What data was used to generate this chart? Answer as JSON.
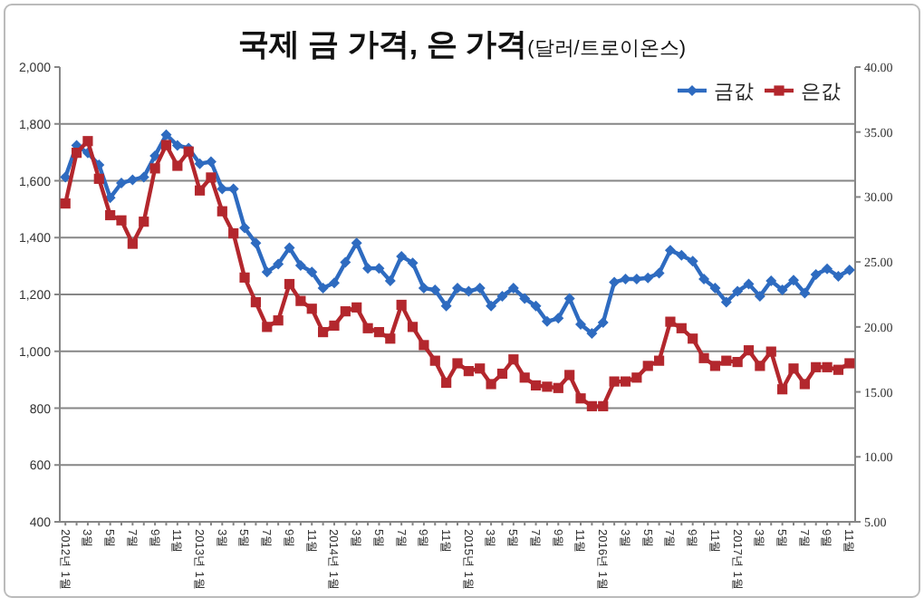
{
  "chart_data": {
    "type": "line",
    "title": "국제 금 가격, 은 가격",
    "subtitle": "(달러/트로이온스)",
    "categories": [
      "2012년 1월",
      null,
      "3월",
      null,
      "5월",
      null,
      "7월",
      null,
      "9월",
      null,
      "11월",
      null,
      "2013년 1월",
      null,
      "3월",
      null,
      "5월",
      null,
      "7월",
      null,
      "9월",
      null,
      "11월",
      null,
      "2014년 1월",
      null,
      "3월",
      null,
      "5월",
      null,
      "7월",
      null,
      "9월",
      null,
      "11월",
      null,
      "2015년 1월",
      null,
      "3월",
      null,
      "5월",
      null,
      "7월",
      null,
      "9월",
      null,
      "11월",
      null,
      "2016년 1월",
      null,
      "3월",
      null,
      "5월",
      null,
      "7월",
      null,
      "9월",
      null,
      "11월",
      null,
      "2017년 1월",
      null,
      "3월",
      null,
      "5월",
      null,
      "7월",
      null,
      "9월",
      null,
      "11월"
    ],
    "series": [
      {
        "name": "금값",
        "color": "#2e6bc0",
        "marker": "diamond",
        "values": [
          1613,
          1724,
          1698,
          1656,
          1540,
          1592,
          1603,
          1613,
          1688,
          1762,
          1724,
          1715,
          1660,
          1667,
          1571,
          1571,
          1434,
          1381,
          1279,
          1307,
          1364,
          1302,
          1279,
          1222,
          1241,
          1313,
          1381,
          1292,
          1292,
          1248,
          1334,
          1311,
          1222,
          1216,
          1159,
          1222,
          1211,
          1222,
          1159,
          1194,
          1222,
          1186,
          1159,
          1105,
          1116,
          1186,
          1095,
          1063,
          1101,
          1243,
          1254,
          1254,
          1258,
          1275,
          1355,
          1338,
          1317,
          1254,
          1222,
          1173,
          1211,
          1237,
          1194,
          1248,
          1216,
          1250,
          1205,
          1270,
          1290,
          1264,
          1286
        ]
      },
      {
        "name": "은값",
        "color": "#b3272d",
        "marker": "square",
        "axis": "y2",
        "values": [
          29.5,
          33.4,
          34.3,
          31.4,
          28.6,
          28.2,
          26.4,
          28.1,
          32.2,
          34.0,
          32.4,
          33.5,
          30.5,
          31.5,
          28.9,
          27.2,
          23.8,
          21.9,
          20.0,
          20.5,
          23.3,
          22.0,
          21.4,
          19.6,
          20.1,
          21.2,
          21.5,
          19.9,
          19.6,
          19.1,
          21.7,
          20.0,
          18.6,
          17.4,
          15.7,
          17.2,
          16.6,
          16.8,
          15.6,
          16.4,
          17.5,
          16.1,
          15.5,
          15.4,
          15.3,
          16.3,
          14.5,
          13.9,
          13.9,
          15.8,
          15.8,
          16.1,
          17.0,
          17.4,
          20.4,
          19.9,
          19.1,
          17.6,
          17.0,
          17.4,
          17.3,
          18.2,
          17.0,
          18.1,
          15.2,
          16.8,
          15.6,
          16.9,
          16.9,
          16.7,
          17.2
        ]
      }
    ],
    "ylim": [
      400,
      2000
    ],
    "yticks": [
      {
        "value": 400,
        "label": "400"
      },
      {
        "value": 600,
        "label": "600"
      },
      {
        "value": 800,
        "label": "800"
      },
      {
        "value": 1000,
        "label": "1,000"
      },
      {
        "value": 1200,
        "label": "1,200"
      },
      {
        "value": 1400,
        "label": "1,400"
      },
      {
        "value": 1600,
        "label": "1,600"
      },
      {
        "value": 1800,
        "label": "1,800"
      },
      {
        "value": 2000,
        "label": "2,000"
      }
    ],
    "y2lim": [
      5,
      40
    ],
    "y2ticks": [
      {
        "value": 5,
        "label": "5.00"
      },
      {
        "value": 10,
        "label": "10.00"
      },
      {
        "value": 15,
        "label": "15.00"
      },
      {
        "value": 20,
        "label": "20.00"
      },
      {
        "value": 25,
        "label": "25.00"
      },
      {
        "value": 30,
        "label": "30.00"
      },
      {
        "value": 35,
        "label": "35.00"
      },
      {
        "value": 40,
        "label": "40.00"
      }
    ],
    "grid": "y",
    "legend": "top right",
    "line_style": "solid"
  }
}
